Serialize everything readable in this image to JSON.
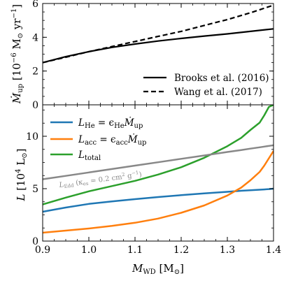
{
  "chart_data": [
    {
      "type": "line",
      "panel": "top",
      "ylabel": "Ṁ_up [10⁻⁶ M☉ yr⁻¹]",
      "ylim": [
        0,
        6
      ],
      "xlim": [
        0.9,
        1.4
      ],
      "y_ticks": [
        0,
        2,
        4,
        6
      ],
      "y_tick_labels": [
        "0",
        "2",
        "4",
        "6"
      ],
      "legend_position": "lower-right",
      "x": [
        0.9,
        0.95,
        1.0,
        1.05,
        1.1,
        1.15,
        1.2,
        1.25,
        1.3,
        1.35,
        1.4
      ],
      "series": [
        {
          "name": "Brooks et al. (2016)",
          "style": "solid",
          "color": "#000000",
          "values": [
            2.5,
            2.85,
            3.15,
            3.4,
            3.6,
            3.78,
            3.93,
            4.07,
            4.2,
            4.35,
            4.5
          ]
        },
        {
          "name": "Wang et al. (2017)",
          "style": "dashed",
          "color": "#000000",
          "values": [
            2.5,
            2.82,
            3.15,
            3.45,
            3.75,
            4.05,
            4.35,
            4.7,
            5.05,
            5.45,
            5.9
          ]
        }
      ]
    },
    {
      "type": "line",
      "panel": "bottom",
      "ylabel": "L [10⁴ L☉]",
      "xlabel": "M_WD [M☉]",
      "ylim": [
        0,
        13
      ],
      "xlim": [
        0.9,
        1.4
      ],
      "y_ticks": [
        0,
        5,
        10
      ],
      "y_tick_labels": [
        "0",
        "5",
        "10"
      ],
      "x_ticks": [
        0.9,
        1.0,
        1.1,
        1.2,
        1.3,
        1.4
      ],
      "x_tick_labels": [
        "0.9",
        "1.0",
        "1.1",
        "1.2",
        "1.3",
        "1.4"
      ],
      "legend_position": "upper-left",
      "annotation": "L_Edd (κ_es = 0.2 cm² g⁻¹)",
      "x": [
        0.9,
        0.95,
        1.0,
        1.05,
        1.1,
        1.15,
        1.2,
        1.25,
        1.3,
        1.33,
        1.35,
        1.37,
        1.38,
        1.39,
        1.4
      ],
      "series": [
        {
          "name": "L_He = ε_He Ṁ_up",
          "color": "#1f77b4",
          "values": [
            2.8,
            3.2,
            3.55,
            3.78,
            4.0,
            4.2,
            4.38,
            4.55,
            4.7,
            4.8,
            4.85,
            4.9,
            4.93,
            4.96,
            5.0
          ]
        },
        {
          "name": "L_acc = ε_acc Ṁ_up",
          "color": "#ff7f0e",
          "values": [
            0.8,
            1.0,
            1.2,
            1.45,
            1.75,
            2.15,
            2.7,
            3.4,
            4.35,
            5.1,
            5.8,
            6.6,
            7.2,
            7.9,
            8.6
          ]
        },
        {
          "name": "L_total",
          "color": "#2ca02c",
          "values": [
            3.5,
            4.15,
            4.75,
            5.25,
            5.75,
            6.35,
            7.05,
            7.95,
            9.05,
            9.85,
            10.6,
            11.3,
            12.0,
            12.8,
            13.0
          ]
        },
        {
          "name": "L_Edd",
          "color": "#888888",
          "values": [
            5.9,
            6.22,
            6.55,
            6.87,
            7.2,
            7.52,
            7.85,
            8.17,
            8.5,
            8.69,
            8.82,
            8.95,
            9.01,
            9.08,
            9.15
          ]
        }
      ]
    }
  ],
  "legend_top": {
    "brooks": "Brooks et al. (2016)",
    "wang": "Wang et al. (2017)"
  },
  "legend_bottom": {
    "he_L": "L",
    "he_L_sub": "He",
    "he_eq": " = ϵ",
    "he_eps_sub": "He",
    "he_mdot": "Ṁ",
    "he_mdot_sub": "up",
    "acc_L": "L",
    "acc_L_sub": "acc",
    "acc_eq": " = ϵ",
    "acc_eps_sub": "acc",
    "acc_mdot": "Ṁ",
    "acc_mdot_sub": "up",
    "tot_L": "L",
    "tot_L_sub": "total"
  },
  "annotation": {
    "l": "L",
    "l_sub": "Edd",
    "rest": " (κ",
    "kappa_sub": "es",
    "eq": " = 0.2 cm",
    "sup2": "2",
    "g": " g",
    "supm1": "−1",
    "close": ")"
  },
  "labels": {
    "top_y_mdot": "Ṁ",
    "top_y_sub": "up",
    "top_y_unit": " [10",
    "top_y_exp": "−6",
    "top_y_m": " M",
    "top_y_sun": "⊙",
    "top_y_yr": " yr",
    "top_y_exp2": "−1",
    "top_y_close": "]",
    "bot_y_L": "L",
    "bot_y_unit": " [10",
    "bot_y_exp": "4",
    "bot_y_l": " L",
    "bot_y_sun": "⊙",
    "bot_y_close": "]",
    "x_M": "M",
    "x_sub": "WD",
    "x_unit": " [M",
    "x_sun": "⊙",
    "x_close": "]"
  }
}
